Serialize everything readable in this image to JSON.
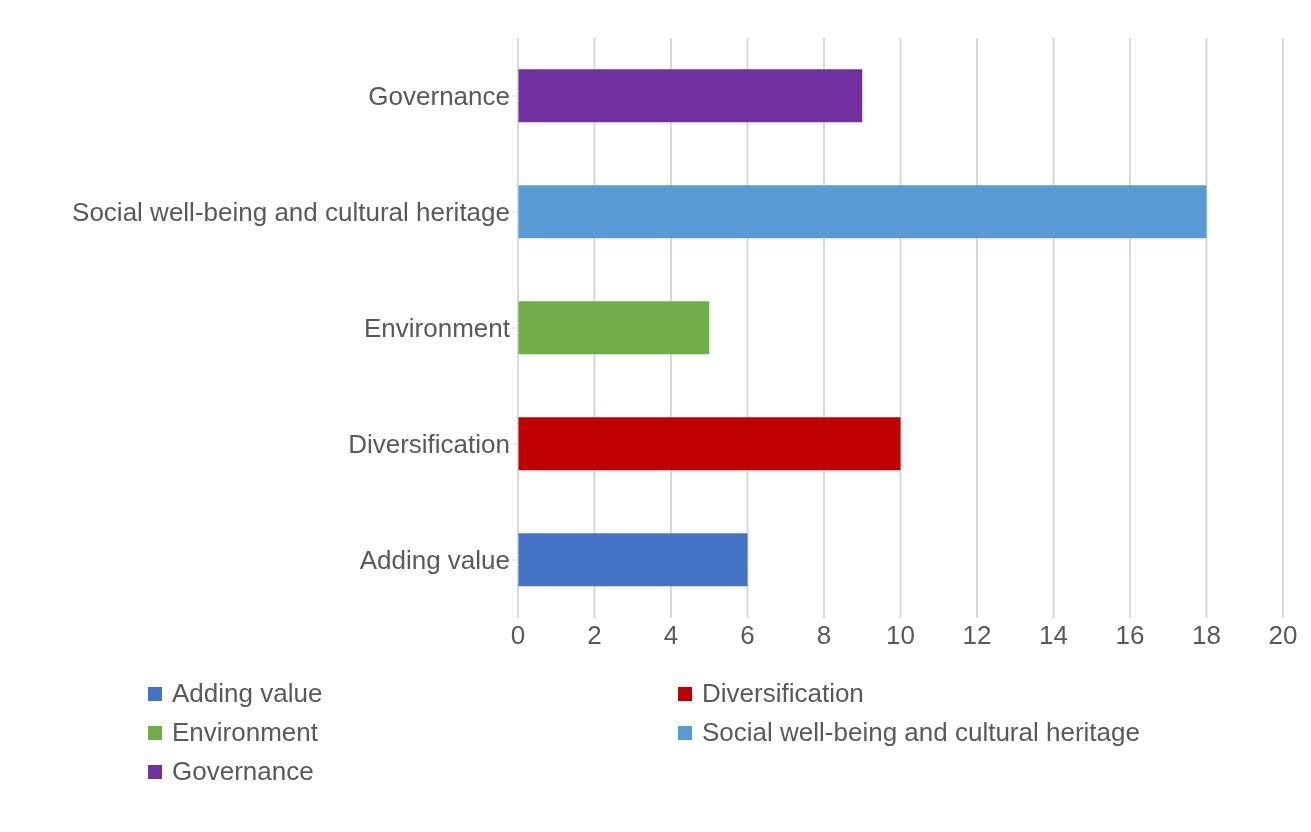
{
  "chart_data": {
    "type": "bar",
    "orientation": "horizontal",
    "stacked": true,
    "categories": [
      "Governance",
      "Social well-being and cultural heritage",
      "Environment",
      "Diversification",
      "Adding value"
    ],
    "series": [
      {
        "name": "Adding value",
        "color": "#4472c4",
        "values": [
          null,
          null,
          null,
          null,
          6
        ]
      },
      {
        "name": "Diversification",
        "color": "#c00000",
        "values": [
          null,
          null,
          null,
          10,
          null
        ]
      },
      {
        "name": "Environment",
        "color": "#70ad47",
        "values": [
          null,
          null,
          5,
          null,
          null
        ]
      },
      {
        "name": "Social well-being and cultural heritage",
        "color": "#5b9bd5",
        "values": [
          null,
          18,
          null,
          null,
          null
        ]
      },
      {
        "name": "Governance",
        "color": "#7030a0",
        "values": [
          9,
          null,
          null,
          null,
          null
        ]
      }
    ],
    "xlim": [
      0,
      20
    ],
    "xticks": [
      0,
      2,
      4,
      6,
      8,
      10,
      12,
      14,
      16,
      18,
      20
    ],
    "grid": "x",
    "legend": "bottom"
  }
}
